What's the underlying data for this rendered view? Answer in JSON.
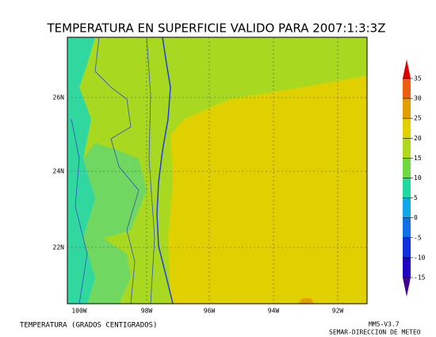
{
  "header": {
    "title": "TEMPERATURA EN SUPERFICIE VALIDO PARA 2007:1:3:3Z"
  },
  "map": {
    "lon_labels": [
      "100W",
      "98W",
      "96W",
      "94W",
      "92W"
    ],
    "lat_labels": [
      "26N",
      "24N",
      "22N"
    ]
  },
  "colorbar": {
    "ticks": [
      35,
      30,
      25,
      20,
      15,
      10,
      5,
      0,
      -5,
      -10,
      -15
    ],
    "colors": [
      "#e00000",
      "#e86010",
      "#e0a000",
      "#e0d000",
      "#b0d820",
      "#70d840",
      "#20d8a0",
      "#10a8e8",
      "#1070e8",
      "#1030e0",
      "#2000c0",
      "#400090"
    ]
  },
  "footer": {
    "left": "TEMPERATURA (GRADOS CENTIGRADOS)",
    "right_top": "MM5-V3.7",
    "right_bottom": "SEMAR-DIRECCION DE METEO"
  }
}
